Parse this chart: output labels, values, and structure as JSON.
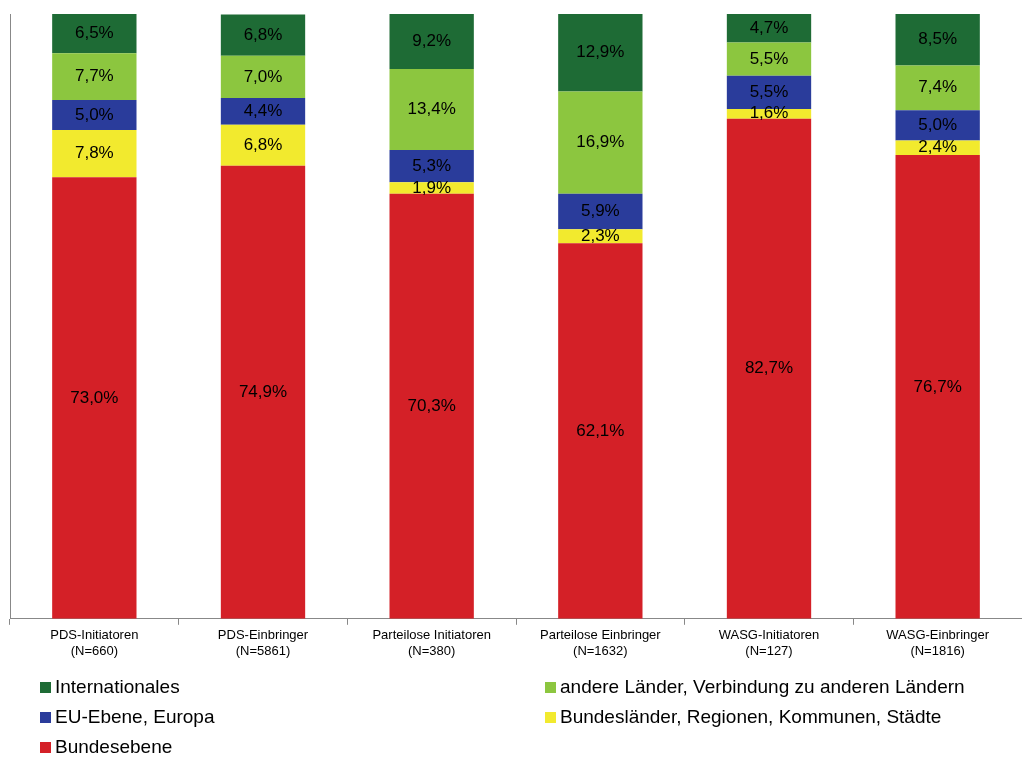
{
  "chart_data": {
    "type": "bar",
    "stacked": true,
    "ylim": [
      0,
      100
    ],
    "tick_labels": "x",
    "grid": false,
    "legend": "bottom",
    "categories": [
      "PDS-Initiatoren\n(N=660)",
      "PDS-Einbringer\n(N=5861)",
      "Parteilose Initiatoren\n(N=380)",
      "Parteilose Einbringer\n(N=1632)",
      "WASG-Initiatoren\n(N=127)",
      "WASG-Einbringer\n(N=1816)"
    ],
    "series": [
      {
        "name": "Bundesebene",
        "color": "#d42027",
        "values": [
          73.0,
          74.9,
          70.3,
          62.1,
          82.7,
          76.7
        ],
        "value_labels": [
          "73,0%",
          "74,9%",
          "70,3%",
          "62,1%",
          "82,7%",
          "76,7%"
        ]
      },
      {
        "name": "Bundesländer, Regionen, Kommunen, Städte",
        "color": "#f2ea2e",
        "values": [
          7.8,
          6.8,
          1.9,
          2.3,
          1.6,
          2.4
        ],
        "value_labels": [
          "7,8%",
          "6,8%",
          "1,9%",
          "2,3%",
          "1,6%",
          "2,4%"
        ]
      },
      {
        "name": "EU-Ebene, Europa",
        "color": "#2a3c9b",
        "values": [
          5.0,
          4.4,
          5.3,
          5.9,
          5.5,
          5.0
        ],
        "value_labels": [
          "5,0%",
          "4,4%",
          "5,3%",
          "5,9%",
          "5,5%",
          "5,0%"
        ]
      },
      {
        "name": "andere Länder, Verbindung zu anderen Ländern",
        "color": "#8cc63f",
        "values": [
          7.7,
          7.0,
          13.4,
          16.9,
          5.5,
          7.4
        ],
        "value_labels": [
          "7,7%",
          "7,0%",
          "13,4%",
          "16,9%",
          "5,5%",
          "7,4%"
        ]
      },
      {
        "name": "Internationales",
        "color": "#1e6b35",
        "values": [
          6.5,
          6.8,
          9.2,
          12.9,
          4.7,
          8.5
        ],
        "value_labels": [
          "6,5%",
          "6,8%",
          "9,2%",
          "12,9%",
          "4,7%",
          "8,5%"
        ]
      }
    ]
  }
}
